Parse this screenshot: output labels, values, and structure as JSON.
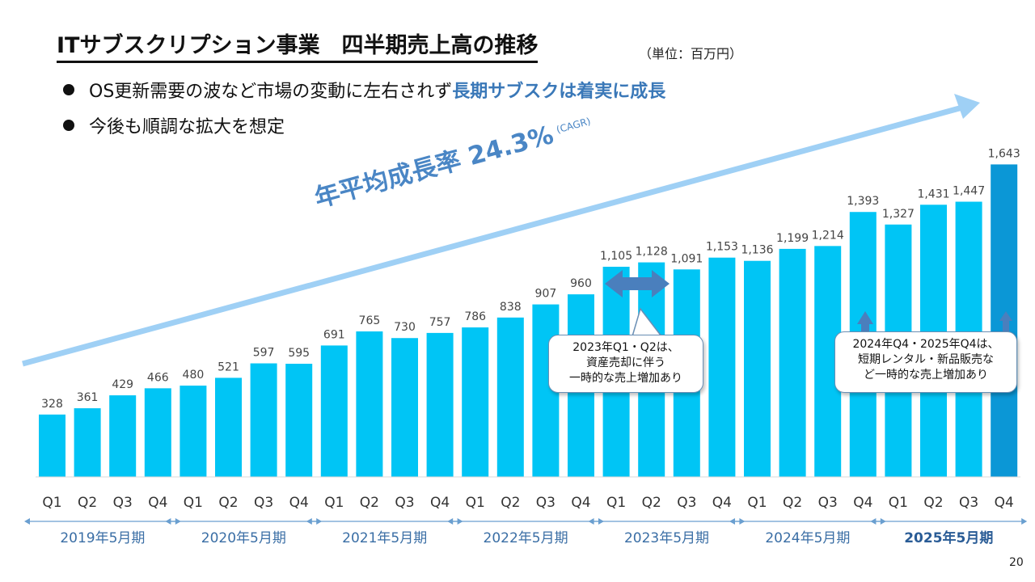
{
  "slide": {
    "title": "ITサブスクリプション事業　四半期売上高の推移",
    "unit": "（単位：百万円）",
    "bullet1_plain": "OS更新需要の波など市場の変動に左右されず",
    "bullet1_emph": "長期サブスクは着実に成長",
    "bullet2": "今後も順調な拡大を想定",
    "cagr_label": "年平均成長率 24.3%",
    "cagr_note": "(CAGR)",
    "callout1": "2023年Q1・Q2は、\n資産売却に伴う\n一時的な売上増加あり",
    "callout2": "2024年Q4・2025年Q4は、\n短期レンタル・新品販売な\nど一時的な売上増加あり",
    "page_number": "20"
  },
  "colors": {
    "bar": "#00c5f5",
    "bar_highlight": "#0b97d6",
    "arrow": "#9fd0f5",
    "year_text": "#3a6ea5",
    "double_arrow": "#4a7fbd",
    "up_arrow": "#4a7fbd"
  },
  "chart_data": {
    "type": "bar",
    "categories": [
      "Q1",
      "Q2",
      "Q3",
      "Q4",
      "Q1",
      "Q2",
      "Q3",
      "Q4",
      "Q1",
      "Q2",
      "Q3",
      "Q4",
      "Q1",
      "Q2",
      "Q3",
      "Q4",
      "Q1",
      "Q2",
      "Q3",
      "Q4",
      "Q1",
      "Q2",
      "Q3",
      "Q4",
      "Q1",
      "Q2",
      "Q3",
      "Q4"
    ],
    "values": [
      328,
      361,
      429,
      466,
      480,
      521,
      597,
      595,
      691,
      765,
      730,
      757,
      786,
      838,
      907,
      960,
      1105,
      1128,
      1091,
      1153,
      1136,
      1199,
      1214,
      1393,
      1327,
      1431,
      1447,
      1643
    ],
    "value_labels": [
      "328",
      "361",
      "429",
      "466",
      "480",
      "521",
      "597",
      "595",
      "691",
      "765",
      "730",
      "757",
      "786",
      "838",
      "907",
      "960",
      "1,105",
      "1,128",
      "1,091",
      "1,153",
      "1,136",
      "1,199",
      "1,214",
      "1,393",
      "1,327",
      "1,431",
      "1,447",
      "1,643"
    ],
    "year_groups": [
      "2019年5月期",
      "2020年5月期",
      "2021年5月期",
      "2022年5月期",
      "2023年5月期",
      "2024年5月期",
      "2025年5月期"
    ],
    "highlight_index": 27,
    "ylim": [
      0,
      1700
    ],
    "grid": false
  }
}
